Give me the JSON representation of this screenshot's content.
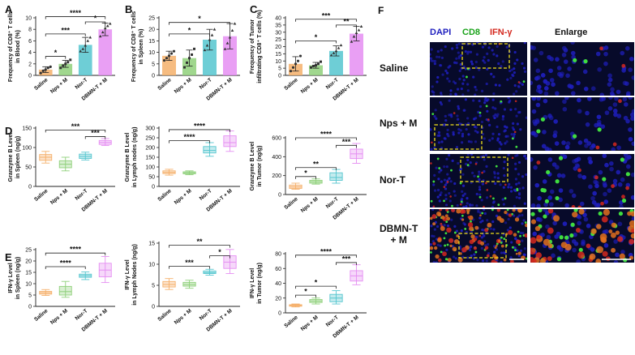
{
  "panel_letters": [
    "A",
    "B",
    "C",
    "D",
    "E",
    "F"
  ],
  "groups": [
    "Saline",
    "Nps + M",
    "Nor-T",
    "DBMN-T + M"
  ],
  "colors": {
    "saline": "#f5b06b",
    "nps": "#8fd07a",
    "nor": "#55c6cf",
    "dbmn": "#e58ef2",
    "dapi": "#1f1fbf",
    "cd8": "#1aa31a",
    "ifng": "#d4281e"
  },
  "chart_data": [
    {
      "id": "A",
      "type": "bar",
      "ylabel_lines": [
        "Frequency of CD8⁺ T cells",
        "in Blood (%)"
      ],
      "ylim": [
        0,
        10
      ],
      "ticks": [
        0,
        2,
        4,
        6,
        8,
        10
      ],
      "categories": [
        "Saline",
        "Nps + M",
        "Nor-T",
        "DBMN-T + M"
      ],
      "values": [
        1.0,
        2.0,
        5.3,
        8.0
      ],
      "errors": [
        0.5,
        0.6,
        1.3,
        1.1
      ],
      "points": [
        [
          0.4,
          0.8,
          1.0,
          1.3,
          1.5
        ],
        [
          1.3,
          1.7,
          2.0,
          2.3,
          2.7
        ],
        [
          4.2,
          4.6,
          5.2,
          6.0,
          6.6
        ],
        [
          6.8,
          7.5,
          8.2,
          8.6,
          9.0
        ]
      ],
      "sig": [
        {
          "from": 0,
          "to": 1,
          "label": "*",
          "y": 3.3
        },
        {
          "from": 0,
          "to": 2,
          "label": "***",
          "y": 7.2
        },
        {
          "from": 2,
          "to": 3,
          "label": "*",
          "y": 9.3
        },
        {
          "from": 0,
          "to": 3,
          "label": "****",
          "y": 10.2
        }
      ]
    },
    {
      "id": "B",
      "type": "bar",
      "ylabel_lines": [
        "Frequency of CD8⁺ T cells",
        "in Spleen (%)"
      ],
      "ylim": [
        0,
        25
      ],
      "ticks": [
        0,
        5,
        10,
        15,
        20,
        25
      ],
      "categories": [
        "Saline",
        "Nps + M",
        "Nor-T",
        "DBMN-T + M"
      ],
      "values": [
        8.5,
        7.5,
        15.5,
        17.0
      ],
      "errors": [
        2.0,
        3.5,
        4.5,
        5.5
      ],
      "points": [
        [
          6.5,
          7.5,
          8.5,
          9.5,
          10.5
        ],
        [
          3.5,
          5.5,
          7.5,
          9.0,
          11.5
        ],
        [
          11.0,
          13.0,
          15.5,
          17.5,
          20.0
        ],
        [
          11.5,
          14.0,
          16.5,
          19.5,
          22.5
        ]
      ],
      "sig": [
        {
          "from": 0,
          "to": 2,
          "label": "*",
          "y": 18.0
        },
        {
          "from": 0,
          "to": 3,
          "label": "*",
          "y": 23.0
        }
      ]
    },
    {
      "id": "C",
      "type": "bar",
      "ylabel_lines": [
        "Frequency of Tumor",
        "infiltrating CD8⁺ T cells (%)"
      ],
      "ylim": [
        0,
        40
      ],
      "ticks": [
        0,
        5,
        10,
        15,
        20,
        25,
        30,
        35,
        40
      ],
      "categories": [
        "Saline",
        "Nps + M",
        "Nor-T",
        "DBMN-T + M"
      ],
      "values": [
        8.0,
        7.0,
        17.0,
        29.0
      ],
      "errors": [
        5.0,
        2.0,
        3.5,
        5.0
      ],
      "points": [
        [
          3.0,
          5.5,
          8.0,
          10.0,
          13.5
        ],
        [
          5.5,
          6.5,
          7.0,
          8.0,
          9.5
        ],
        [
          14.0,
          15.5,
          17.0,
          19.0,
          21.0
        ],
        [
          23.5,
          27.0,
          29.5,
          31.5,
          34.0
        ]
      ],
      "sig": [
        {
          "from": 0,
          "to": 2,
          "label": "*",
          "y": 24.0
        },
        {
          "from": 2,
          "to": 3,
          "label": "**",
          "y": 35.0
        },
        {
          "from": 0,
          "to": 3,
          "label": "***",
          "y": 39.0
        }
      ]
    },
    {
      "id": "D1",
      "type": "box",
      "ylabel_lines": [
        "Granzyme B Level",
        "in Spleen (ng/g)"
      ],
      "ylim": [
        0,
        150
      ],
      "ticks": [
        0,
        50,
        100,
        150
      ],
      "categories": [
        "Saline",
        "Nps + M",
        "Nor-T",
        "DBMN-T + M"
      ],
      "boxes": [
        [
          60,
          67,
          75,
          82,
          90
        ],
        [
          40,
          48,
          57,
          66,
          75
        ],
        [
          68,
          72,
          77,
          83,
          88
        ],
        [
          105,
          108,
          113,
          118,
          123
        ]
      ],
      "sig": [
        {
          "from": 2,
          "to": 3,
          "label": "***",
          "y": 128
        },
        {
          "from": 0,
          "to": 3,
          "label": "***",
          "y": 145
        }
      ]
    },
    {
      "id": "D2",
      "type": "box",
      "ylabel_lines": [
        "Granzyme B Level",
        "in Lymph nodes  (ng/g)"
      ],
      "ylim": [
        0,
        300
      ],
      "ticks": [
        0,
        50,
        100,
        150,
        200,
        250,
        300
      ],
      "categories": [
        "Saline",
        "Nps + M",
        "Nor-T",
        "DBMN-T + M"
      ],
      "boxes": [
        [
          58,
          66,
          72,
          80,
          88
        ],
        [
          60,
          65,
          70,
          75,
          80
        ],
        [
          155,
          172,
          185,
          205,
          225
        ],
        [
          180,
          205,
          225,
          260,
          285
        ]
      ],
      "sig": [
        {
          "from": 0,
          "to": 2,
          "label": "****",
          "y": 235
        },
        {
          "from": 0,
          "to": 3,
          "label": "****",
          "y": 292
        }
      ]
    },
    {
      "id": "D3",
      "type": "box",
      "ylabel_lines": [
        "Granzyme B Level",
        "in Tumor (ng/g)"
      ],
      "ylim": [
        0,
        600
      ],
      "ticks": [
        0,
        200,
        400,
        600
      ],
      "categories": [
        "Saline",
        "Nps + M",
        "Nor-T",
        "DBMN-T + M"
      ],
      "boxes": [
        [
          55,
          65,
          80,
          100,
          120
        ],
        [
          110,
          120,
          135,
          150,
          165
        ],
        [
          120,
          150,
          180,
          230,
          265
        ],
        [
          330,
          380,
          430,
          480,
          540
        ]
      ],
      "sig": [
        {
          "from": 0,
          "to": 1,
          "label": "*",
          "y": 190
        },
        {
          "from": 0,
          "to": 2,
          "label": "**",
          "y": 285
        },
        {
          "from": 2,
          "to": 3,
          "label": "***",
          "y": 520
        },
        {
          "from": 0,
          "to": 3,
          "label": "****",
          "y": 600
        }
      ]
    },
    {
      "id": "E1",
      "type": "box",
      "ylabel_lines": [
        "IFN-γ Level",
        "in Spleen (ng/g)"
      ],
      "ylim": [
        0,
        25
      ],
      "ticks": [
        0,
        5,
        10,
        15,
        20,
        25
      ],
      "categories": [
        "Saline",
        "Nps + M",
        "Nor-T",
        "DBMN-T + M"
      ],
      "boxes": [
        [
          4.8,
          5.4,
          6.0,
          6.6,
          7.4
        ],
        [
          4.0,
          5.0,
          6.5,
          8.8,
          11.0
        ],
        [
          11.8,
          12.8,
          13.5,
          14.2,
          15.2
        ],
        [
          10.5,
          13.0,
          16.0,
          19.0,
          22.0
        ]
      ],
      "sig": [
        {
          "from": 0,
          "to": 2,
          "label": "****",
          "y": 17.5
        },
        {
          "from": 0,
          "to": 3,
          "label": "****",
          "y": 23.5
        }
      ]
    },
    {
      "id": "E2",
      "type": "box",
      "ylabel_lines": [
        "IFN-γ Level",
        "in Lymph Nodes (ng/g)"
      ],
      "ylim": [
        0,
        15
      ],
      "ticks": [
        0,
        5,
        10,
        15
      ],
      "categories": [
        "Saline",
        "Nps + M",
        "Nor-T",
        "DBMN-T + M"
      ],
      "boxes": [
        [
          4.0,
          4.6,
          5.2,
          5.9,
          6.6
        ],
        [
          4.3,
          4.8,
          5.2,
          5.7,
          6.2
        ],
        [
          7.4,
          7.8,
          8.0,
          8.4,
          8.8
        ],
        [
          7.8,
          9.0,
          10.5,
          12.0,
          13.5
        ]
      ],
      "sig": [
        {
          "from": 0,
          "to": 2,
          "label": "***",
          "y": 9.5
        },
        {
          "from": 2,
          "to": 3,
          "label": "*",
          "y": 12.0
        },
        {
          "from": 0,
          "to": 3,
          "label": "**",
          "y": 14.5
        }
      ]
    },
    {
      "id": "E3",
      "type": "box",
      "ylabel_lines": [
        "IFN-γ Level",
        "in Tumor (ng/g)"
      ],
      "ylim": [
        0,
        80
      ],
      "ticks": [
        0,
        20,
        40,
        60,
        80
      ],
      "categories": [
        "Saline",
        "Nps + M",
        "Nor-T",
        "DBMN-T + M"
      ],
      "boxes": [
        [
          8.0,
          9.0,
          10.0,
          11.0,
          12.0
        ],
        [
          12.0,
          14.0,
          16.0,
          18.0,
          20.0
        ],
        [
          12.0,
          15.0,
          20.0,
          25.0,
          30.0
        ],
        [
          38.0,
          43.0,
          50.0,
          57.0,
          65.0
        ]
      ],
      "sig": [
        {
          "from": 0,
          "to": 1,
          "label": "*",
          "y": 24.0
        },
        {
          "from": 0,
          "to": 2,
          "label": "*",
          "y": 36.0
        },
        {
          "from": 2,
          "to": 3,
          "label": "***",
          "y": 68.0
        },
        {
          "from": 0,
          "to": 3,
          "label": "****",
          "y": 78.0
        }
      ]
    }
  ],
  "micrograph": {
    "header_dapi": "DAPI",
    "header_cd8": "CD8",
    "header_ifn": "IFN-γ",
    "header_enlarge": "Enlarge",
    "rows": [
      "Saline",
      "Nps + M",
      "Nor-T",
      "DBMN-T\n+ M"
    ],
    "row_lines": [
      [
        "Saline"
      ],
      [
        "Nps + M"
      ],
      [
        "Nor-T"
      ],
      [
        "DBMN-T",
        "+ M"
      ]
    ]
  }
}
